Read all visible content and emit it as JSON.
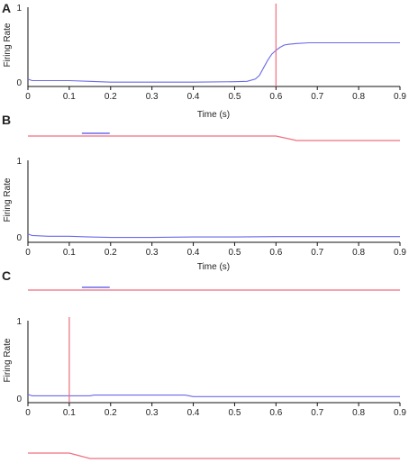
{
  "chart_data": [
    {
      "panel": "A",
      "type": "line",
      "xlabel": "Time (s)",
      "ylabel": "Firing Rate",
      "xlim": [
        0,
        0.9
      ],
      "ylim": [
        0,
        1
      ],
      "xticks": [
        "0",
        "0.1",
        "0.2",
        "0.3",
        "0.4",
        "0.5",
        "0.6",
        "0.7",
        "0.8",
        "0.9"
      ],
      "yticks": [
        "0",
        "1"
      ],
      "colors": {
        "rate": "#6a6ae8",
        "marker": "#ef6f7f"
      },
      "series": [
        {
          "x": [
            0,
            0.005,
            0.01,
            0.02,
            0.05,
            0.1,
            0.15,
            0.2,
            0.3,
            0.4,
            0.5,
            0.53,
            0.55,
            0.56,
            0.57,
            0.58,
            0.59,
            0.6,
            0.61,
            0.62,
            0.63,
            0.65,
            0.68,
            0.7,
            0.8,
            0.9
          ],
          "y": [
            0.05,
            0.04,
            0.03,
            0.03,
            0.03,
            0.03,
            0.02,
            0.01,
            0.01,
            0.01,
            0.015,
            0.02,
            0.05,
            0.1,
            0.2,
            0.3,
            0.38,
            0.43,
            0.47,
            0.5,
            0.51,
            0.52,
            0.53,
            0.53,
            0.53,
            0.53
          ]
        }
      ],
      "vertical_marker_x": 0.6,
      "stimulus_bar": null,
      "below_trace": null
    },
    {
      "panel": "B",
      "type": "line",
      "xlabel": "Time (s)",
      "ylabel": "Firing Rate",
      "xlim": [
        0,
        0.9
      ],
      "ylim": [
        0,
        1
      ],
      "xticks": [
        "0",
        "0.1",
        "0.2",
        "0.3",
        "0.4",
        "0.5",
        "0.6",
        "0.7",
        "0.8",
        "0.9"
      ],
      "yticks": [
        "0",
        "1"
      ],
      "colors": {
        "rate": "#6a6ae8",
        "marker": "#ef6f7f"
      },
      "series": [
        {
          "x": [
            0,
            0.005,
            0.01,
            0.05,
            0.1,
            0.15,
            0.2,
            0.3,
            0.4,
            0.5,
            0.6,
            0.7,
            0.8,
            0.9
          ],
          "y": [
            0.05,
            0.04,
            0.03,
            0.02,
            0.02,
            0.01,
            0.005,
            0.005,
            0.01,
            0.01,
            0.015,
            0.015,
            0.015,
            0.015
          ]
        }
      ],
      "vertical_marker_x": null,
      "stimulus_bar": {
        "start": 0.1,
        "end": 0.2
      },
      "top_trace": {
        "x": [
          0,
          0.6,
          0.65,
          0.9
        ],
        "level": [
          1,
          1,
          0,
          0
        ]
      },
      "below_trace": null
    },
    {
      "panel": "C",
      "type": "line",
      "xlabel": "",
      "ylabel": "Firing Rate",
      "xlim": [
        0,
        0.9
      ],
      "ylim": [
        0,
        1
      ],
      "xticks": [
        "0",
        "0.1",
        "0.2",
        "0.3",
        "0.4",
        "0.5",
        "0.6",
        "0.7",
        "0.8",
        "0.9"
      ],
      "yticks": [
        "0",
        "1"
      ],
      "colors": {
        "rate": "#6a6ae8",
        "marker": "#ef6f7f"
      },
      "series": [
        {
          "x": [
            0,
            0.005,
            0.01,
            0.05,
            0.1,
            0.15,
            0.16,
            0.2,
            0.3,
            0.38,
            0.39,
            0.4,
            0.5,
            0.6,
            0.7,
            0.8,
            0.9
          ],
          "y": [
            0.05,
            0.04,
            0.03,
            0.03,
            0.03,
            0.03,
            0.04,
            0.04,
            0.04,
            0.04,
            0.03,
            0.02,
            0.02,
            0.02,
            0.02,
            0.02,
            0.02
          ]
        }
      ],
      "vertical_marker_x": 0.1,
      "stimulus_bar": {
        "start": 0.1,
        "end": 0.2
      },
      "top_trace": {
        "x": [
          0,
          0.9
        ],
        "level": [
          1,
          1
        ]
      },
      "below_trace": {
        "x": [
          0,
          0.1,
          0.15,
          0.9
        ],
        "level": [
          1,
          1,
          0,
          0
        ]
      }
    }
  ]
}
